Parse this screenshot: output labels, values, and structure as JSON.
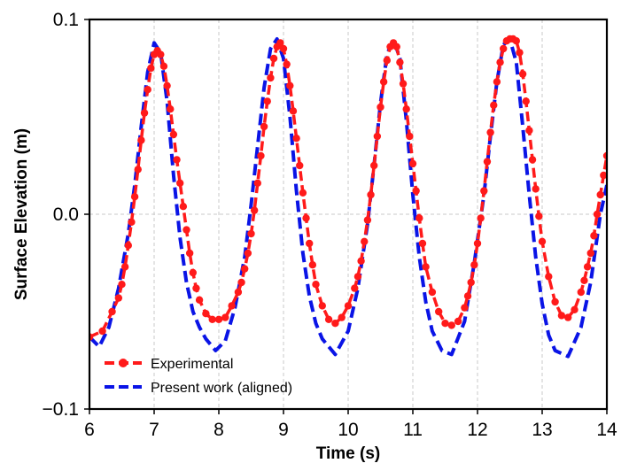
{
  "chart_data": {
    "type": "line",
    "title": "",
    "xlabel": "Time (s)",
    "ylabel": "Surface Elevation (m)",
    "xlim": [
      6,
      14
    ],
    "ylim": [
      -0.1,
      0.1
    ],
    "x_ticks": [
      6,
      7,
      8,
      9,
      10,
      11,
      12,
      13,
      14
    ],
    "y_ticks": [
      -0.1,
      0.0,
      0.1
    ],
    "x_tick_labels": [
      "6",
      "7",
      "8",
      "9",
      "10",
      "11",
      "12",
      "13",
      "14"
    ],
    "y_tick_labels": [
      "−0.1",
      "0.0",
      "0.1"
    ],
    "grid": true,
    "legend_position": "lower-left",
    "series": [
      {
        "name": "Experimental",
        "color": "#ff1a1a",
        "line_style": "dashed",
        "marker": "circle",
        "x": [
          6.0,
          6.2,
          6.35,
          6.45,
          6.5,
          6.55,
          6.6,
          6.65,
          6.7,
          6.75,
          6.8,
          6.85,
          6.9,
          6.95,
          7.0,
          7.05,
          7.1,
          7.15,
          7.2,
          7.25,
          7.3,
          7.35,
          7.4,
          7.45,
          7.5,
          7.55,
          7.6,
          7.65,
          7.7,
          7.8,
          7.9,
          8.0,
          8.1,
          8.2,
          8.3,
          8.35,
          8.4,
          8.45,
          8.5,
          8.55,
          8.6,
          8.65,
          8.7,
          8.75,
          8.8,
          8.85,
          8.9,
          8.95,
          9.0,
          9.05,
          9.1,
          9.15,
          9.2,
          9.25,
          9.3,
          9.35,
          9.4,
          9.45,
          9.5,
          9.6,
          9.7,
          9.8,
          9.9,
          10.0,
          10.1,
          10.15,
          10.2,
          10.25,
          10.3,
          10.35,
          10.4,
          10.45,
          10.5,
          10.55,
          10.6,
          10.65,
          10.7,
          10.75,
          10.8,
          10.85,
          10.9,
          10.95,
          11.0,
          11.05,
          11.1,
          11.15,
          11.2,
          11.3,
          11.4,
          11.5,
          11.6,
          11.7,
          11.8,
          11.85,
          11.9,
          11.95,
          12.0,
          12.05,
          12.1,
          12.15,
          12.2,
          12.25,
          12.3,
          12.35,
          12.4,
          12.45,
          12.5,
          12.55,
          12.6,
          12.65,
          12.7,
          12.75,
          12.8,
          12.85,
          12.9,
          12.95,
          13.0,
          13.1,
          13.2,
          13.3,
          13.4,
          13.5,
          13.6,
          13.65,
          13.7,
          13.75,
          13.8,
          13.85,
          13.9,
          13.95,
          14.0
        ],
        "y": [
          -0.063,
          -0.06,
          -0.05,
          -0.043,
          -0.036,
          -0.027,
          -0.016,
          -0.004,
          0.009,
          0.023,
          0.038,
          0.052,
          0.064,
          0.075,
          0.082,
          0.084,
          0.082,
          0.076,
          0.066,
          0.054,
          0.041,
          0.028,
          0.016,
          0.004,
          -0.008,
          -0.02,
          -0.03,
          -0.038,
          -0.044,
          -0.051,
          -0.054,
          -0.054,
          -0.053,
          -0.047,
          -0.04,
          -0.035,
          -0.028,
          -0.02,
          -0.01,
          0.002,
          0.016,
          0.03,
          0.045,
          0.058,
          0.07,
          0.08,
          0.086,
          0.088,
          0.085,
          0.077,
          0.066,
          0.053,
          0.039,
          0.025,
          0.011,
          -0.002,
          -0.015,
          -0.026,
          -0.036,
          -0.047,
          -0.054,
          -0.056,
          -0.053,
          -0.047,
          -0.038,
          -0.032,
          -0.024,
          -0.014,
          -0.003,
          0.01,
          0.025,
          0.04,
          0.055,
          0.068,
          0.079,
          0.086,
          0.088,
          0.086,
          0.078,
          0.067,
          0.054,
          0.04,
          0.026,
          0.012,
          -0.002,
          -0.015,
          -0.027,
          -0.04,
          -0.05,
          -0.056,
          -0.057,
          -0.055,
          -0.048,
          -0.042,
          -0.035,
          -0.026,
          -0.015,
          -0.002,
          0.012,
          0.027,
          0.042,
          0.056,
          0.068,
          0.078,
          0.085,
          0.089,
          0.09,
          0.09,
          0.089,
          0.083,
          0.072,
          0.058,
          0.043,
          0.028,
          0.013,
          -0.001,
          -0.014,
          -0.032,
          -0.045,
          -0.052,
          -0.053,
          -0.049,
          -0.04,
          -0.034,
          -0.027,
          -0.02,
          -0.011,
          0.0,
          0.01,
          0.02,
          0.03
        ]
      },
      {
        "name": "Present work (aligned)",
        "color": "#0a14e6",
        "line_style": "dashed",
        "marker": "none",
        "x": [
          6.0,
          6.15,
          6.3,
          6.45,
          6.6,
          6.7,
          6.8,
          6.9,
          7.0,
          7.1,
          7.2,
          7.3,
          7.4,
          7.5,
          7.6,
          7.7,
          7.8,
          7.95,
          8.1,
          8.25,
          8.4,
          8.5,
          8.6,
          8.7,
          8.8,
          8.9,
          9.0,
          9.1,
          9.2,
          9.3,
          9.4,
          9.5,
          9.6,
          9.8,
          10.0,
          10.15,
          10.3,
          10.4,
          10.5,
          10.6,
          10.7,
          10.8,
          10.9,
          11.0,
          11.1,
          11.2,
          11.3,
          11.45,
          11.6,
          11.8,
          11.95,
          12.1,
          12.2,
          12.3,
          12.4,
          12.5,
          12.6,
          12.7,
          12.8,
          12.9,
          13.0,
          13.1,
          13.2,
          13.4,
          13.6,
          13.75,
          13.9,
          14.0
        ],
        "y": [
          -0.063,
          -0.068,
          -0.058,
          -0.038,
          -0.01,
          0.015,
          0.045,
          0.073,
          0.088,
          0.083,
          0.058,
          0.02,
          -0.012,
          -0.035,
          -0.05,
          -0.058,
          -0.064,
          -0.07,
          -0.065,
          -0.048,
          -0.022,
          0.005,
          0.035,
          0.065,
          0.085,
          0.09,
          0.08,
          0.05,
          0.012,
          -0.02,
          -0.042,
          -0.056,
          -0.064,
          -0.072,
          -0.06,
          -0.038,
          -0.005,
          0.025,
          0.057,
          0.082,
          0.09,
          0.08,
          0.048,
          0.01,
          -0.022,
          -0.045,
          -0.06,
          -0.07,
          -0.072,
          -0.055,
          -0.025,
          0.01,
          0.04,
          0.068,
          0.087,
          0.09,
          0.078,
          0.045,
          0.01,
          -0.022,
          -0.046,
          -0.062,
          -0.07,
          -0.073,
          -0.058,
          -0.035,
          0.0,
          0.015
        ]
      }
    ]
  }
}
